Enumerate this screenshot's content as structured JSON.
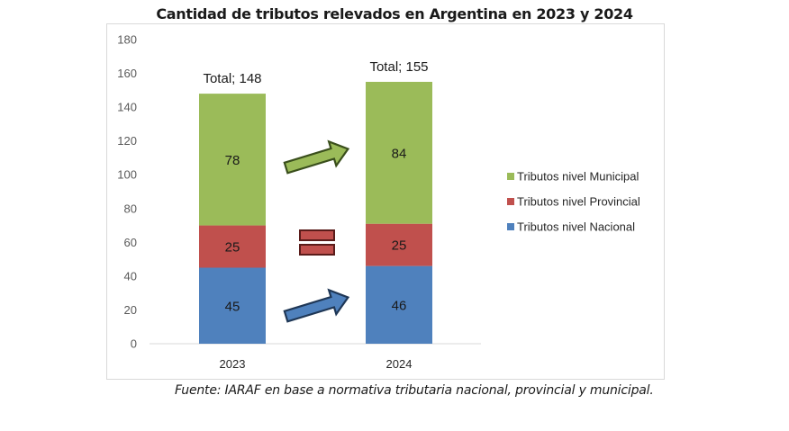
{
  "chart_data": {
    "type": "bar",
    "stacked": true,
    "title": "Cantidad de tributos relevados en Argentina en 2023 y 2024",
    "categories": [
      "2023",
      "2024"
    ],
    "series": [
      {
        "name": "Tributos nivel Nacional",
        "values": [
          45,
          46
        ],
        "color": "#4f81bd"
      },
      {
        "name": "Tributos nivel Provincial",
        "values": [
          25,
          25
        ],
        "color": "#c0504d"
      },
      {
        "name": "Tributos nivel Municipal",
        "values": [
          78,
          84
        ],
        "color": "#9bbb59"
      }
    ],
    "totals": [
      148,
      155
    ],
    "total_label_prefix": "Total; ",
    "ylim": [
      0,
      180
    ],
    "yticks": [
      0,
      20,
      40,
      60,
      80,
      100,
      120,
      140,
      160,
      180
    ],
    "xlabel": "",
    "ylabel": "",
    "grid": false,
    "legend": {
      "placement": "right",
      "order": [
        "Tributos nivel Municipal",
        "Tributos nivel Provincial",
        "Tributos nivel Nacional"
      ]
    },
    "annotations": [
      {
        "type": "arrow-up-right",
        "meaning": "increase",
        "series": "Tributos nivel Municipal",
        "color": "#9bbb59"
      },
      {
        "type": "equals",
        "meaning": "unchanged",
        "series": "Tributos nivel Provincial",
        "color": "#c0504d"
      },
      {
        "type": "arrow-up-right",
        "meaning": "increase",
        "series": "Tributos nivel Nacional",
        "color": "#4f81bd"
      }
    ]
  },
  "source_note": "Fuente: IARAF en base a normativa tributaria nacional, provincial y municipal."
}
